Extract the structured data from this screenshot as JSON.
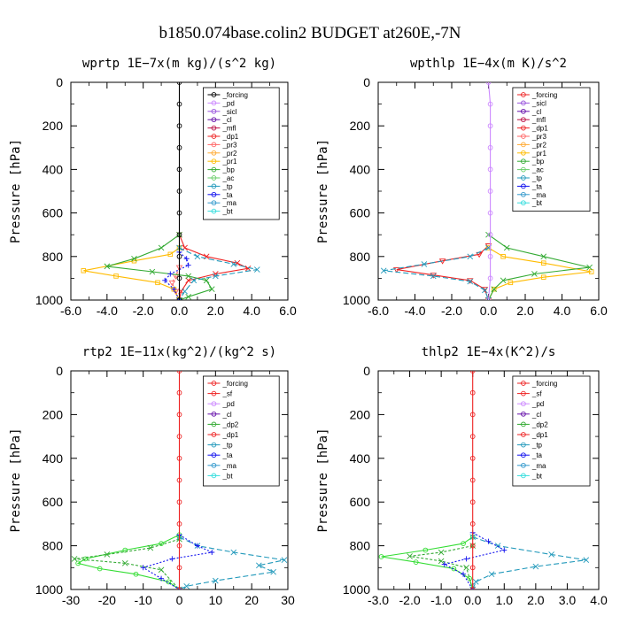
{
  "figure_title": "b1850.074base.colin2  BUDGET at260E,-7N",
  "chart_data": [
    {
      "type": "line",
      "title": "wprtp  1E−7x(m kg)/(s^2 kg)",
      "ylabel": "Pressure [hPa]",
      "xlim": [
        -6,
        6
      ],
      "ylim": [
        0,
        1000
      ],
      "y_inverted": true,
      "xticks": [
        -6,
        -4,
        -2,
        0,
        2,
        4,
        6
      ],
      "xtick_labels": [
        "-6.0",
        "-4.0",
        "-2.0",
        "0.0",
        "2.0",
        "4.0",
        "6.0"
      ],
      "yticks": [
        0,
        200,
        400,
        600,
        800,
        1000
      ],
      "ytick_labels": [
        "0",
        "200",
        "400",
        "600",
        "800",
        "1000"
      ],
      "legend": [
        "_forcing",
        "_pd",
        "_sicl",
        "_cl",
        "_mfl",
        "_dp1",
        "_pr3",
        "_pr2",
        "_pr1",
        "_bp",
        "_ac",
        "_tp",
        "_ta",
        "_ma",
        "_bt"
      ],
      "legend_position": "top-right",
      "series": [
        {
          "name": "_dp1",
          "color": "#ee2222",
          "marker": "x",
          "dash": "",
          "points": [
            [
              0,
              700
            ],
            [
              0.3,
              760
            ],
            [
              1.5,
              800
            ],
            [
              3.2,
              830
            ],
            [
              3.8,
              855
            ],
            [
              2.0,
              880
            ],
            [
              0.5,
              910
            ],
            [
              0.1,
              960
            ],
            [
              0,
              1000
            ]
          ]
        },
        {
          "name": "_pr3",
          "color": "#ff6666",
          "marker": "tri",
          "dash": "3,2",
          "points": [
            [
              0,
              850
            ],
            [
              -0.2,
              890
            ],
            [
              -0.4,
              920
            ],
            [
              -0.2,
              960
            ],
            [
              0,
              1000
            ]
          ]
        },
        {
          "name": "_pr1",
          "color": "#ffbb00",
          "marker": "sq",
          "dash": "",
          "points": [
            [
              0,
              760
            ],
            [
              -0.5,
              790
            ],
            [
              -2.5,
              820
            ],
            [
              -5.3,
              865
            ],
            [
              -3.5,
              890
            ],
            [
              -1.2,
              920
            ],
            [
              -0.3,
              950
            ],
            [
              0,
              1000
            ]
          ]
        },
        {
          "name": "_bp",
          "color": "#33aa33",
          "marker": "x",
          "dash": "",
          "points": [
            [
              0,
              700
            ],
            [
              -1.0,
              760
            ],
            [
              -2.5,
              810
            ],
            [
              -4.0,
              845
            ],
            [
              -1.5,
              870
            ],
            [
              0.5,
              890
            ],
            [
              1.5,
              910
            ],
            [
              1.8,
              950
            ],
            [
              0.5,
              985
            ],
            [
              0,
              1000
            ]
          ]
        },
        {
          "name": "_tp",
          "color": "#2299bb",
          "marker": "x",
          "dash": "6,3",
          "points": [
            [
              0,
              760
            ],
            [
              1.0,
              800
            ],
            [
              3.0,
              835
            ],
            [
              4.3,
              860
            ],
            [
              2.0,
              890
            ],
            [
              0.8,
              910
            ],
            [
              0.3,
              960
            ],
            [
              0,
              1000
            ]
          ]
        },
        {
          "name": "_ta",
          "color": "#1111ee",
          "marker": "plus",
          "dash": "2,2",
          "points": [
            [
              0,
              780
            ],
            [
              0.4,
              810
            ],
            [
              0.5,
              840
            ],
            [
              -0.5,
              880
            ],
            [
              -0.8,
              910
            ],
            [
              -0.3,
              950
            ],
            [
              0,
              1000
            ]
          ]
        },
        {
          "name": "_forcing",
          "color": "#000000",
          "marker": "o",
          "dash": "",
          "points": [
            [
              0,
              0
            ],
            [
              0,
              100
            ],
            [
              0,
              200
            ],
            [
              0,
              300
            ],
            [
              0,
              400
            ],
            [
              0,
              500
            ],
            [
              0,
              600
            ],
            [
              0,
              700
            ],
            [
              0,
              800
            ],
            [
              0,
              900
            ],
            [
              0,
              1000
            ]
          ]
        }
      ]
    },
    {
      "type": "line",
      "title": "wpthlp  1E−4x(m K)/s^2",
      "ylabel": "Pressure [hPa]",
      "xlim": [
        -6,
        6
      ],
      "ylim": [
        0,
        1000
      ],
      "y_inverted": true,
      "xticks": [
        -6,
        -4,
        -2,
        0,
        2,
        4,
        6
      ],
      "xtick_labels": [
        "-6.0",
        "-4.0",
        "-2.0",
        "0.0",
        "2.0",
        "4.0",
        "6.0"
      ],
      "yticks": [
        0,
        200,
        400,
        600,
        800,
        1000
      ],
      "ytick_labels": [
        "0",
        "200",
        "400",
        "600",
        "800",
        "1000"
      ],
      "legend": [
        "_forcing",
        "_sicl",
        "_cl",
        "_mfl",
        "_dp1",
        "_pr3",
        "_pr2",
        "_pr1",
        "_bp",
        "_ac",
        "_tp",
        "_ta",
        "_ma",
        "_bt"
      ],
      "legend_position": "top-right",
      "series": [
        {
          "name": "_dp1",
          "color": "#ee2222",
          "marker": "tri",
          "dash": "",
          "points": [
            [
              0,
              750
            ],
            [
              -0.5,
              790
            ],
            [
              -2.5,
              820
            ],
            [
              -5.0,
              860
            ],
            [
              -3.0,
              885
            ],
            [
              -1.0,
              910
            ],
            [
              -0.2,
              950
            ],
            [
              0,
              1000
            ]
          ]
        },
        {
          "name": "_pr1",
          "color": "#ffbb00",
          "marker": "sq",
          "dash": "",
          "points": [
            [
              0,
              760
            ],
            [
              0.8,
              800
            ],
            [
              3.0,
              830
            ],
            [
              5.6,
              870
            ],
            [
              3.0,
              895
            ],
            [
              1.2,
              920
            ],
            [
              0.3,
              950
            ],
            [
              0,
              1000
            ]
          ]
        },
        {
          "name": "_bp",
          "color": "#33aa33",
          "marker": "x",
          "dash": "",
          "points": [
            [
              0,
              700
            ],
            [
              1.0,
              760
            ],
            [
              3.0,
              800
            ],
            [
              5.5,
              850
            ],
            [
              2.5,
              880
            ],
            [
              0.8,
              910
            ],
            [
              0.3,
              950
            ],
            [
              0,
              1000
            ]
          ]
        },
        {
          "name": "_tp",
          "color": "#2299bb",
          "marker": "x",
          "dash": "6,3",
          "points": [
            [
              0,
              760
            ],
            [
              -1.0,
              800
            ],
            [
              -3.5,
              835
            ],
            [
              -5.7,
              865
            ],
            [
              -3.0,
              890
            ],
            [
              -1.0,
              915
            ],
            [
              -0.2,
              955
            ],
            [
              0,
              1000
            ]
          ]
        },
        {
          "name": "_forcing",
          "color": "#cc88ff",
          "marker": "o",
          "dash": "",
          "points": [
            [
              0,
              0
            ],
            [
              0.1,
              100
            ],
            [
              0.1,
              200
            ],
            [
              0.1,
              300
            ],
            [
              0.1,
              400
            ],
            [
              0.1,
              500
            ],
            [
              0.1,
              600
            ],
            [
              0.1,
              700
            ],
            [
              0.1,
              800
            ],
            [
              0.1,
              900
            ],
            [
              0,
              1000
            ]
          ]
        }
      ]
    },
    {
      "type": "line",
      "title": "rtp2  1E−11x(kg^2)/(kg^2 s)",
      "ylabel": "Pressure [hPa]",
      "xlim": [
        -30,
        30
      ],
      "ylim": [
        0,
        1000
      ],
      "y_inverted": true,
      "xticks": [
        -30,
        -20,
        -10,
        0,
        10,
        20,
        30
      ],
      "xtick_labels": [
        "-30",
        "-20",
        "-10",
        "0",
        "10",
        "20",
        "30"
      ],
      "yticks": [
        0,
        200,
        400,
        600,
        800,
        1000
      ],
      "ytick_labels": [
        "0",
        "200",
        "400",
        "600",
        "800",
        "1000"
      ],
      "legend": [
        "_forcing",
        "_sf",
        "_pd",
        "_cl",
        "_dp2",
        "_dp1",
        "_tp",
        "_ta",
        "_ma",
        "_bt"
      ],
      "legend_position": "top-right",
      "series": [
        {
          "name": "_dp1",
          "color": "#33dd33",
          "marker": "o",
          "dash": "",
          "points": [
            [
              0,
              750
            ],
            [
              -5,
              790
            ],
            [
              -15,
              820
            ],
            [
              -26,
              860
            ],
            [
              -28,
              880
            ],
            [
              -22,
              905
            ],
            [
              -12,
              930
            ],
            [
              -3,
              965
            ],
            [
              0,
              1000
            ]
          ]
        },
        {
          "name": "_dp2",
          "color": "#33aa33",
          "marker": "x",
          "dash": "3,2",
          "points": [
            [
              0,
              770
            ],
            [
              -8,
              810
            ],
            [
              -20,
              840
            ],
            [
              -29,
              860
            ],
            [
              -15,
              880
            ],
            [
              -5,
              910
            ],
            [
              0,
              1000
            ]
          ]
        },
        {
          "name": "_tp",
          "color": "#2299bb",
          "marker": "x",
          "dash": "6,3",
          "points": [
            [
              0,
              760
            ],
            [
              5,
              800
            ],
            [
              15,
              830
            ],
            [
              29,
              865
            ],
            [
              22,
              890
            ],
            [
              26,
              920
            ],
            [
              10,
              960
            ],
            [
              2,
              985
            ],
            [
              0,
              1000
            ]
          ]
        },
        {
          "name": "_ta",
          "color": "#1111ee",
          "marker": "plus",
          "dash": "2,2",
          "points": [
            [
              0,
              750
            ],
            [
              5,
              800
            ],
            [
              9,
              830
            ],
            [
              -2,
              860
            ],
            [
              -10,
              900
            ],
            [
              -5,
              950
            ],
            [
              0,
              1000
            ]
          ]
        },
        {
          "name": "_forcing",
          "color": "#ee2222",
          "marker": "o",
          "dash": "",
          "points": [
            [
              0,
              0
            ],
            [
              0,
              100
            ],
            [
              0,
              200
            ],
            [
              0,
              300
            ],
            [
              0,
              400
            ],
            [
              0,
              500
            ],
            [
              0,
              600
            ],
            [
              0,
              700
            ],
            [
              0,
              800
            ],
            [
              0,
              900
            ],
            [
              0,
              1000
            ]
          ]
        }
      ]
    },
    {
      "type": "line",
      "title": "thlp2  1E−4x(K^2)/s",
      "ylabel": "Pressure [hPa]",
      "xlim": [
        -3,
        4
      ],
      "ylim": [
        0,
        1000
      ],
      "y_inverted": true,
      "xticks": [
        -3,
        -2,
        -1,
        0,
        1,
        2,
        3,
        4
      ],
      "xtick_labels": [
        "-3.0",
        "-2.0",
        "-1.0",
        "0.0",
        "1.0",
        "2.0",
        "3.0",
        "4.0"
      ],
      "yticks": [
        0,
        200,
        400,
        600,
        800,
        1000
      ],
      "ytick_labels": [
        "0",
        "200",
        "400",
        "600",
        "800",
        "1000"
      ],
      "legend": [
        "_forcing",
        "_sf",
        "_pd",
        "_cl",
        "_dp2",
        "_dp1",
        "_tp",
        "_ta",
        "_ma",
        "_bt"
      ],
      "legend_position": "top-right",
      "series": [
        {
          "name": "_dp1",
          "color": "#33dd33",
          "marker": "o",
          "dash": "",
          "points": [
            [
              0,
              760
            ],
            [
              -0.3,
              790
            ],
            [
              -1.5,
              820
            ],
            [
              -2.9,
              850
            ],
            [
              -1.8,
              875
            ],
            [
              -0.6,
              905
            ],
            [
              -0.1,
              950
            ],
            [
              0,
              1000
            ]
          ]
        },
        {
          "name": "_dp2",
          "color": "#33aa33",
          "marker": "x",
          "dash": "3,2",
          "points": [
            [
              0,
              800
            ],
            [
              -1.0,
              830
            ],
            [
              -2.0,
              848
            ],
            [
              -1.0,
              870
            ],
            [
              -0.2,
              900
            ],
            [
              0,
              1000
            ]
          ]
        },
        {
          "name": "_tp",
          "color": "#2299bb",
          "marker": "x",
          "dash": "6,3",
          "points": [
            [
              0,
              760
            ],
            [
              0.8,
              800
            ],
            [
              2.5,
              840
            ],
            [
              3.6,
              865
            ],
            [
              2.0,
              895
            ],
            [
              0.6,
              930
            ],
            [
              0.1,
              965
            ],
            [
              0,
              1000
            ]
          ]
        },
        {
          "name": "_ta",
          "color": "#1111ee",
          "marker": "plus",
          "dash": "2,2",
          "points": [
            [
              0,
              740
            ],
            [
              0.5,
              780
            ],
            [
              1.0,
              820
            ],
            [
              -0.2,
              860
            ],
            [
              -0.9,
              885
            ],
            [
              -0.3,
              930
            ],
            [
              0,
              1000
            ]
          ]
        },
        {
          "name": "_forcing",
          "color": "#ee2222",
          "marker": "o",
          "dash": "",
          "points": [
            [
              0,
              0
            ],
            [
              0,
              100
            ],
            [
              0,
              200
            ],
            [
              0,
              300
            ],
            [
              0,
              400
            ],
            [
              0,
              500
            ],
            [
              0,
              600
            ],
            [
              0,
              700
            ],
            [
              0,
              800
            ],
            [
              0,
              900
            ],
            [
              0,
              1000
            ]
          ]
        }
      ]
    }
  ]
}
